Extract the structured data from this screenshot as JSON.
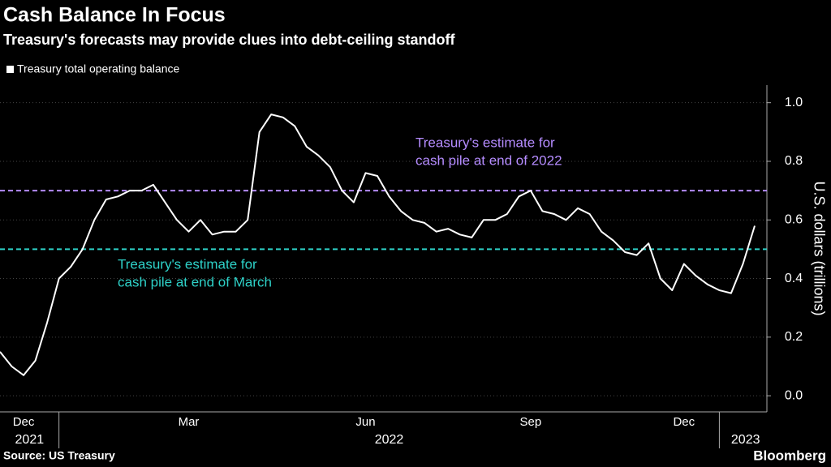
{
  "chart_data": {
    "type": "line",
    "title": "Cash Balance In Focus",
    "subtitle": "Treasury's forecasts may provide clues into debt-ceiling standoff",
    "y_axis_label": "U.S. dollars (trillions)",
    "source": "Source: US Treasury",
    "brand": "Bloomberg",
    "categories": [
      null,
      null,
      "Dec",
      null,
      null,
      null,
      null,
      null,
      null,
      null,
      null,
      null,
      null,
      null,
      null,
      null,
      "Mar",
      null,
      null,
      null,
      null,
      null,
      null,
      null,
      null,
      null,
      null,
      null,
      null,
      null,
      null,
      "Jun",
      null,
      null,
      null,
      null,
      null,
      null,
      null,
      null,
      null,
      null,
      null,
      null,
      null,
      "Sep",
      null,
      null,
      null,
      null,
      null,
      null,
      null,
      null,
      null,
      null,
      null,
      null,
      "Dec",
      null,
      null,
      null,
      null,
      null,
      null
    ],
    "year_groups": [
      {
        "label": "2021",
        "start": 0,
        "end": 5
      },
      {
        "label": "2022",
        "start": 5,
        "end": 61
      },
      {
        "label": "2023",
        "start": 61,
        "end": 64
      }
    ],
    "series": [
      {
        "name": "Treasury total operating balance",
        "color": "#ffffff",
        "values": [
          0.15,
          0.1,
          0.07,
          0.12,
          0.25,
          0.4,
          0.44,
          0.5,
          0.6,
          0.67,
          0.68,
          0.7,
          0.7,
          0.72,
          0.66,
          0.6,
          0.56,
          0.6,
          0.55,
          0.56,
          0.56,
          0.6,
          0.9,
          0.96,
          0.95,
          0.92,
          0.85,
          0.82,
          0.78,
          0.7,
          0.66,
          0.76,
          0.75,
          0.68,
          0.63,
          0.6,
          0.59,
          0.56,
          0.57,
          0.55,
          0.54,
          0.6,
          0.6,
          0.62,
          0.68,
          0.7,
          0.63,
          0.62,
          0.6,
          0.64,
          0.62,
          0.56,
          0.53,
          0.49,
          0.48,
          0.52,
          0.4,
          0.36,
          0.45,
          0.41,
          0.38,
          0.36,
          0.35,
          0.45,
          0.58
        ]
      }
    ],
    "reference_lines": [
      {
        "value": 0.7,
        "color": "#b58cff",
        "label": [
          "Treasury's estimate for",
          "cash pile at end of 2022"
        ]
      },
      {
        "value": 0.5,
        "color": "#2ed1c8",
        "label": [
          "Treasury's estimate for",
          "cash pile at end of March"
        ]
      }
    ],
    "ylim": [
      -0.055,
      1.06
    ],
    "yticks": [
      {
        "value": 0,
        "label": "0.0"
      },
      0.2,
      0.4,
      0.6,
      0.8,
      {
        "value": 1,
        "label": "1.0"
      }
    ],
    "grid": true,
    "legend": "top-left"
  }
}
